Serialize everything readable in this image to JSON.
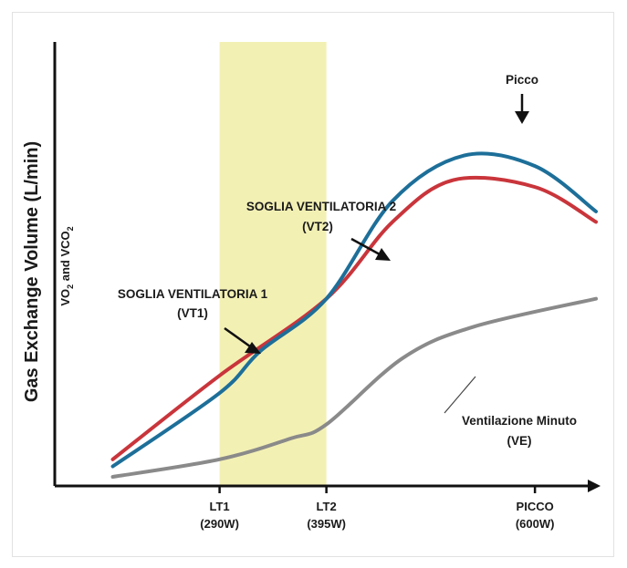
{
  "chart_data": {
    "type": "line",
    "ylabel": "Gas Exchange Volume (L/min)",
    "ylabel_secondary": "VO",
    "ylabel_secondary_sub1": "2",
    "ylabel_secondary_mid": " and VCO",
    "ylabel_secondary_sub2": "2",
    "x_ticks": [
      {
        "line1": "LT1",
        "line2": "(290W)",
        "x": 290
      },
      {
        "line1": "LT2",
        "line2": "(395W)",
        "x": 395
      },
      {
        "line1": "PICCO",
        "line2": "(600W)",
        "x": 600
      }
    ],
    "xlim": [
      180,
      660
    ],
    "ylim": [
      0,
      100
    ],
    "highlight_band": {
      "from": 290,
      "to": 395,
      "color": "#f3f0b4"
    },
    "series": [
      {
        "color": "#c9353b",
        "points": [
          [
            185,
            5
          ],
          [
            290,
            29
          ],
          [
            395,
            51
          ],
          [
            460,
            73
          ],
          [
            520,
            85
          ],
          [
            600,
            83
          ],
          [
            660,
            73
          ]
        ]
      },
      {
        "color": "#1d6f99",
        "points": [
          [
            185,
            3
          ],
          [
            290,
            24
          ],
          [
            330,
            36
          ],
          [
            395,
            51
          ],
          [
            460,
            79
          ],
          [
            530,
            92
          ],
          [
            600,
            89
          ],
          [
            660,
            76
          ]
        ]
      },
      {
        "color": "#8a8a8a",
        "points": [
          [
            185,
            0
          ],
          [
            290,
            5
          ],
          [
            360,
            11
          ],
          [
            395,
            15
          ],
          [
            470,
            34
          ],
          [
            540,
            43
          ],
          [
            660,
            51
          ]
        ]
      }
    ],
    "annotations": {
      "peak": "Picco",
      "vt1_line1": "SOGLIA VENTILATORIA 1",
      "vt1_line2": "(VT1)",
      "vt2_line1": "SOGLIA VENTILATORIA 2",
      "vt2_line2": "(VT2)",
      "ve_line1": "Ventilazione Minuto",
      "ve_line2": "(VE)"
    }
  }
}
